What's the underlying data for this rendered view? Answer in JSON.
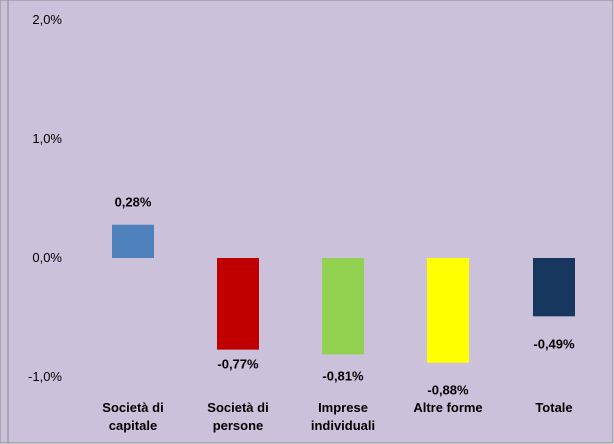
{
  "chart_data": {
    "type": "bar",
    "categories": [
      [
        "Società di",
        "capitale"
      ],
      [
        "Società di",
        "persone"
      ],
      [
        "Imprese",
        "individuali"
      ],
      [
        "Altre forme"
      ],
      [
        "Totale"
      ]
    ],
    "values": [
      0.28,
      -0.77,
      -0.81,
      -0.88,
      -0.49
    ],
    "value_labels": [
      "0,28%",
      "-0,77%",
      "-0,81%",
      "-0,88%",
      "-0,49%"
    ],
    "bar_colors": [
      "#4F81BD",
      "#C00000",
      "#92D050",
      "#FFFF00",
      "#17375E"
    ],
    "ylim": [
      -1.0,
      2.0
    ],
    "yticks": [
      {
        "value": 2.0,
        "label": "2,0%"
      },
      {
        "value": 1.0,
        "label": "1,0%"
      },
      {
        "value": 0.0,
        "label": "0,0%"
      },
      {
        "value": -1.0,
        "label": "-1,0%"
      }
    ],
    "grid": false,
    "plot_background": "#CCC1DA",
    "axis_color": "#8C8C8C"
  }
}
